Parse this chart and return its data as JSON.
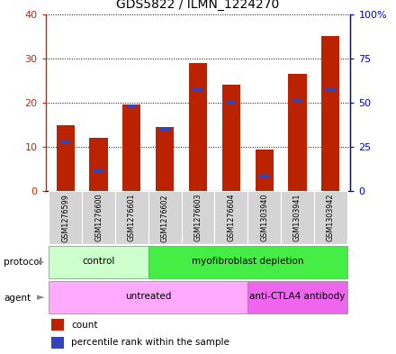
{
  "title": "GDS5822 / ILMN_1224270",
  "samples": [
    "GSM1276599",
    "GSM1276600",
    "GSM1276601",
    "GSM1276602",
    "GSM1276603",
    "GSM1276604",
    "GSM1303940",
    "GSM1303941",
    "GSM1303942"
  ],
  "counts": [
    15.0,
    12.0,
    19.5,
    14.5,
    29.0,
    24.0,
    9.5,
    26.5,
    35.0
  ],
  "percentiles_pct": [
    28.0,
    11.5,
    48.0,
    35.0,
    57.0,
    50.0,
    9.0,
    51.5,
    57.0
  ],
  "ylim_left": [
    0,
    40
  ],
  "ylim_right": [
    0,
    100
  ],
  "yticks_left": [
    0,
    10,
    20,
    30,
    40
  ],
  "yticks_right": [
    0,
    25,
    50,
    75,
    100
  ],
  "ytick_labels_right": [
    "0",
    "25",
    "50",
    "75",
    "100%"
  ],
  "bar_color": "#bb2200",
  "percentile_color": "#3344bb",
  "protocol_groups": [
    {
      "label": "control",
      "start": 0,
      "end": 3,
      "color": "#ccffcc"
    },
    {
      "label": "myofibroblast depletion",
      "start": 3,
      "end": 9,
      "color": "#44ee44"
    }
  ],
  "agent_groups": [
    {
      "label": "untreated",
      "start": 0,
      "end": 6,
      "color": "#ffaaff"
    },
    {
      "label": "anti-CTLA4 antibody",
      "start": 6,
      "end": 9,
      "color": "#ee66ee"
    }
  ],
  "legend_count_label": "count",
  "legend_percentile_label": "percentile rank within the sample",
  "tick_label_color_left": "#cc2200",
  "tick_label_color_right": "#0000cc",
  "background_color": "#ffffff",
  "plot_bg_color": "#ffffff",
  "label_bg_color": "#cccccc",
  "label_cell_color": "#d4d4d4"
}
